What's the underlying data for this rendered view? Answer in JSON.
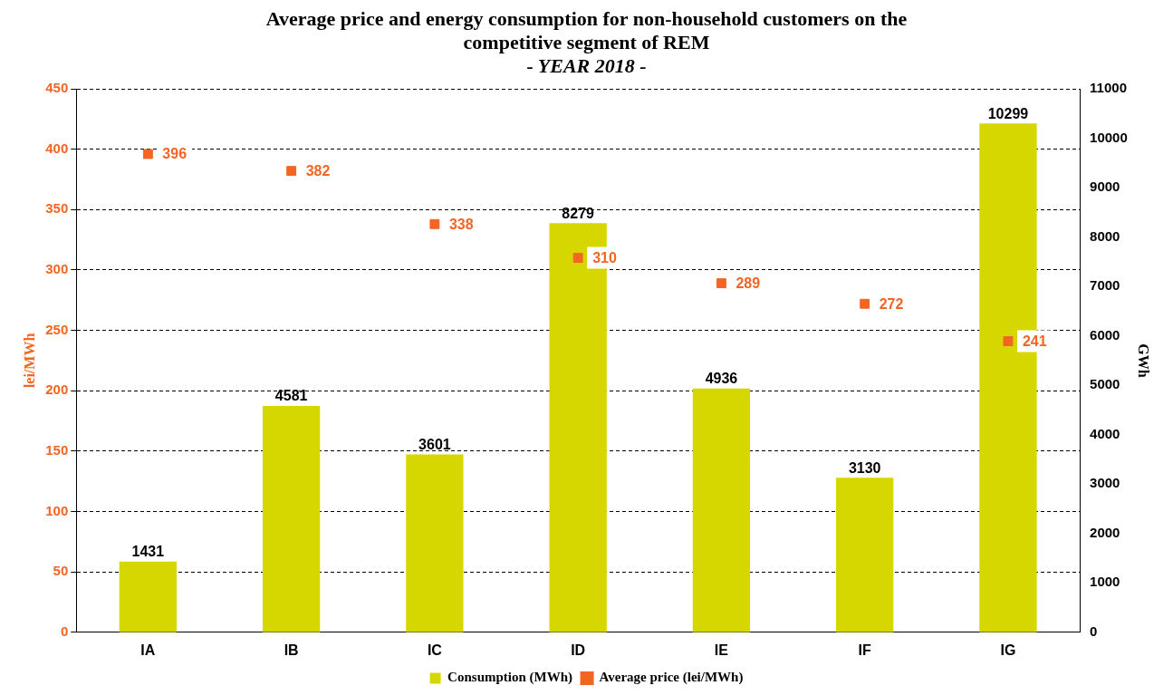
{
  "chart_data": {
    "type": "bar",
    "title": "Average price and energy consumption for non-household customers on the competitive segment of REM",
    "subtitle": "- YEAR 2018 -",
    "ylabel": "lei/MWh",
    "y2label": "GWh",
    "categories": [
      "IA",
      "IB",
      "IC",
      "ID",
      "IE",
      "IF",
      "IG"
    ],
    "series": [
      {
        "name": "Consumption (MWh)",
        "axis": "y2",
        "color": "#d6d600",
        "values": [
          1431,
          4581,
          3601,
          8279,
          4936,
          3130,
          10299
        ]
      },
      {
        "name": "Average price (lei/MWh)",
        "type": "scatter",
        "marker": "square",
        "color": "#f26522",
        "values": [
          396,
          382,
          338,
          310,
          289,
          272,
          241
        ]
      }
    ],
    "ylim": [
      0,
      450
    ],
    "yticks": [
      0,
      50,
      100,
      150,
      200,
      250,
      300,
      350,
      400,
      450
    ],
    "y2lim": [
      0,
      11000
    ],
    "y2ticks": [
      0,
      1000,
      2000,
      3000,
      4000,
      5000,
      6000,
      7000,
      8000,
      9000,
      10000,
      11000
    ],
    "grid": "y",
    "legend": "bottom",
    "data_labels": true
  }
}
